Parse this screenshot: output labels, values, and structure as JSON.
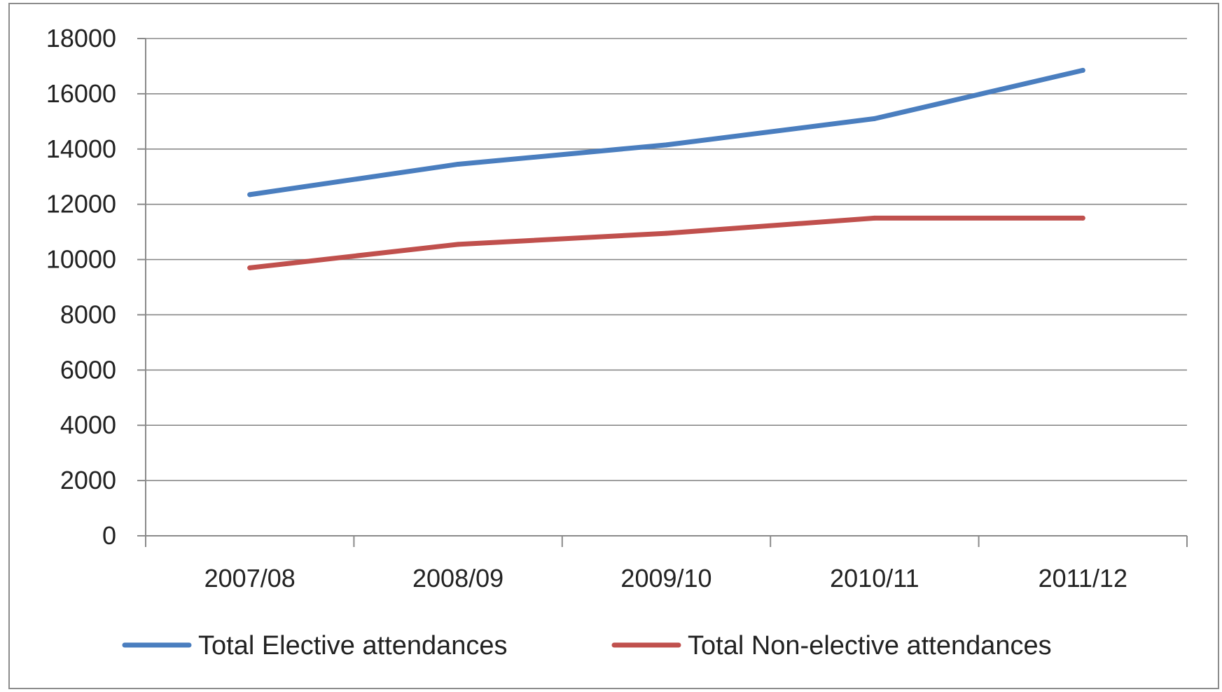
{
  "chart_data": {
    "type": "line",
    "title": "",
    "xlabel": "",
    "ylabel": "",
    "categories": [
      "2007/08",
      "2008/09",
      "2009/10",
      "2010/11",
      "2011/12"
    ],
    "ylim": [
      0,
      18000
    ],
    "yticks": [
      0,
      2000,
      4000,
      6000,
      8000,
      10000,
      12000,
      14000,
      16000,
      18000
    ],
    "grid": true,
    "legend_position": "bottom",
    "series": [
      {
        "name": "Total Elective attendances",
        "color": "#4a7ebf",
        "values": [
          12350,
          13450,
          14150,
          15100,
          16850
        ]
      },
      {
        "name": "Total Non-elective attendances",
        "color": "#c0504d",
        "values": [
          9700,
          10550,
          10950,
          11500,
          11500
        ]
      }
    ]
  }
}
